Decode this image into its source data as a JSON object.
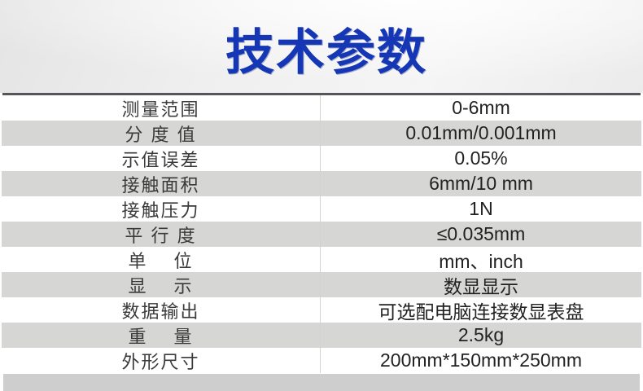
{
  "header": {
    "title": "技术参数"
  },
  "table": {
    "rows": [
      {
        "label": "测量范围",
        "value": "0-6mm"
      },
      {
        "label": "分 度 值",
        "value": "0.01mm/0.001mm"
      },
      {
        "label": "示值误差",
        "value": "0.05%"
      },
      {
        "label": "接触面积",
        "value": "6mm/10 mm"
      },
      {
        "label": "接触压力",
        "value": "1N"
      },
      {
        "label": "平 行 度",
        "value": "≤0.035mm"
      },
      {
        "label": "单　 位",
        "value": "mm、inch"
      },
      {
        "label": "显　 示",
        "value": "数显显示"
      },
      {
        "label": "数据输出",
        "value": "可选配电脑连接数显表盘"
      },
      {
        "label": "重　 量",
        "value": "2.5kg"
      },
      {
        "label": "外形尺寸",
        "value": "200mm*150mm*250mm"
      }
    ]
  },
  "colors": {
    "title_blue": "#1537b5",
    "row_stripe_gray": "#d6d6d4",
    "bottom_strip_gray": "#cecece",
    "header_rule_dark": "#56565a"
  }
}
